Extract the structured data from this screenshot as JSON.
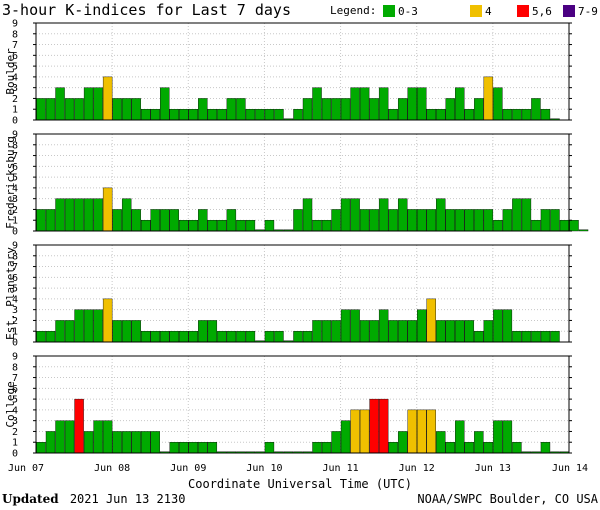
{
  "chart_data": {
    "type": "bar",
    "title": "3-hour K-indices for Last 7 days",
    "legend": {
      "label": "Legend:",
      "placement": "top-right",
      "items": [
        {
          "label": "0-3",
          "color": "#00aa00"
        },
        {
          "label": "4",
          "color": "#f0c000"
        },
        {
          "label": "5,6",
          "color": "#ff0000"
        },
        {
          "label": "7-9",
          "color": "#4b0082"
        }
      ]
    },
    "x_ticks": [
      "Jun 07",
      "Jun 08",
      "Jun 09",
      "Jun 10",
      "Jun 11",
      "Jun 12",
      "Jun 13",
      "Jun 14"
    ],
    "xlabel": "Coordinate Universal Time (UTC)",
    "y_ticks": [
      "0",
      "1",
      "2",
      "3",
      "4",
      "5",
      "6",
      "7",
      "8",
      "9"
    ],
    "ylim": [
      0,
      9
    ],
    "grid": true,
    "panels": [
      {
        "name": "Boulder",
        "values": [
          2,
          2,
          3,
          2,
          2,
          3,
          3,
          4,
          2,
          2,
          2,
          1,
          1,
          3,
          1,
          1,
          1,
          2,
          1,
          1,
          2,
          2,
          1,
          1,
          1,
          1,
          0,
          1,
          2,
          3,
          2,
          2,
          2,
          3,
          3,
          2,
          3,
          1,
          2,
          3,
          3,
          1,
          1,
          2,
          3,
          1,
          2,
          4,
          3,
          1,
          1,
          1,
          2,
          1,
          0
        ]
      },
      {
        "name": "Fredericksburg",
        "values": [
          2,
          2,
          3,
          3,
          3,
          3,
          3,
          4,
          2,
          3,
          2,
          1,
          2,
          2,
          2,
          1,
          1,
          2,
          1,
          1,
          2,
          1,
          1,
          0,
          1,
          0,
          0,
          2,
          3,
          1,
          1,
          2,
          3,
          3,
          2,
          2,
          3,
          2,
          3,
          2,
          2,
          2,
          3,
          2,
          2,
          2,
          2,
          2,
          1,
          2,
          3,
          3,
          1,
          2,
          2,
          1,
          1,
          0
        ]
      },
      {
        "name": "Est. Planetary",
        "values": [
          1,
          1,
          2,
          2,
          3,
          3,
          3,
          4,
          2,
          2,
          2,
          1,
          1,
          1,
          1,
          1,
          1,
          2,
          2,
          1,
          1,
          1,
          1,
          0,
          1,
          1,
          0,
          1,
          1,
          2,
          2,
          2,
          3,
          3,
          2,
          2,
          3,
          2,
          2,
          2,
          3,
          4,
          2,
          2,
          2,
          2,
          1,
          2,
          3,
          3,
          1,
          1,
          1,
          1,
          1
        ]
      },
      {
        "name": "College",
        "values": [
          1,
          2,
          3,
          3,
          5,
          2,
          3,
          3,
          2,
          2,
          2,
          2,
          2,
          0,
          1,
          1,
          1,
          1,
          1,
          0,
          0,
          0,
          0,
          0,
          1,
          0,
          0,
          0,
          0,
          1,
          1,
          2,
          3,
          4,
          4,
          5,
          5,
          1,
          2,
          4,
          4,
          4,
          2,
          1,
          3,
          1,
          2,
          1,
          3,
          3,
          1,
          0,
          0,
          1,
          0,
          0
        ]
      }
    ]
  },
  "footer": {
    "updated_label": "Updated",
    "updated_value": "2021 Jun 13 2130",
    "source": "NOAA/SWPC Boulder, CO USA"
  }
}
